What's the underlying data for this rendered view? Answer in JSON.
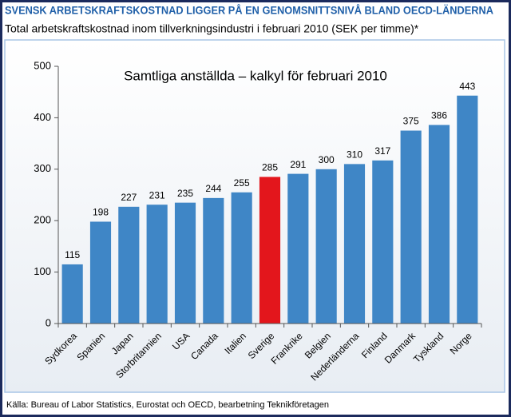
{
  "chart_data": {
    "type": "bar",
    "title": "SVENSK ARBETSKRAFTSKOSTNAD LIGGER PÅ EN GENOMSNITTSNIVÅ BLAND OECD-LÄNDERNA",
    "subtitle": "Total arbetskraftskostnad inom tillverkningsindustri i februari 2010 (SEK per timme)*",
    "annotation": "Samtliga anställda – kalkyl för februari 2010",
    "source": "Källa: Bureau of Labor Statistics, Eurostat och OECD, bearbetning Teknikföretagen",
    "categories": [
      "Sydkorea",
      "Spanien",
      "Japan",
      "Storbritannien",
      "USA",
      "Canada",
      "Italien",
      "Sverige",
      "Frankrike",
      "Belgien",
      "Nederländerna",
      "Finland",
      "Danmark",
      "Tyskland",
      "Norge"
    ],
    "values": [
      115,
      198,
      227,
      231,
      235,
      244,
      255,
      285,
      291,
      300,
      310,
      317,
      375,
      386,
      443
    ],
    "colors": [
      "#3f86c6",
      "#3f86c6",
      "#3f86c6",
      "#3f86c6",
      "#3f86c6",
      "#3f86c6",
      "#3f86c6",
      "#e3161c",
      "#3f86c6",
      "#3f86c6",
      "#3f86c6",
      "#3f86c6",
      "#3f86c6",
      "#3f86c6",
      "#3f86c6"
    ],
    "ylim": [
      0,
      500
    ],
    "yticks": [
      0,
      100,
      200,
      300,
      400,
      500
    ],
    "grid": false
  }
}
